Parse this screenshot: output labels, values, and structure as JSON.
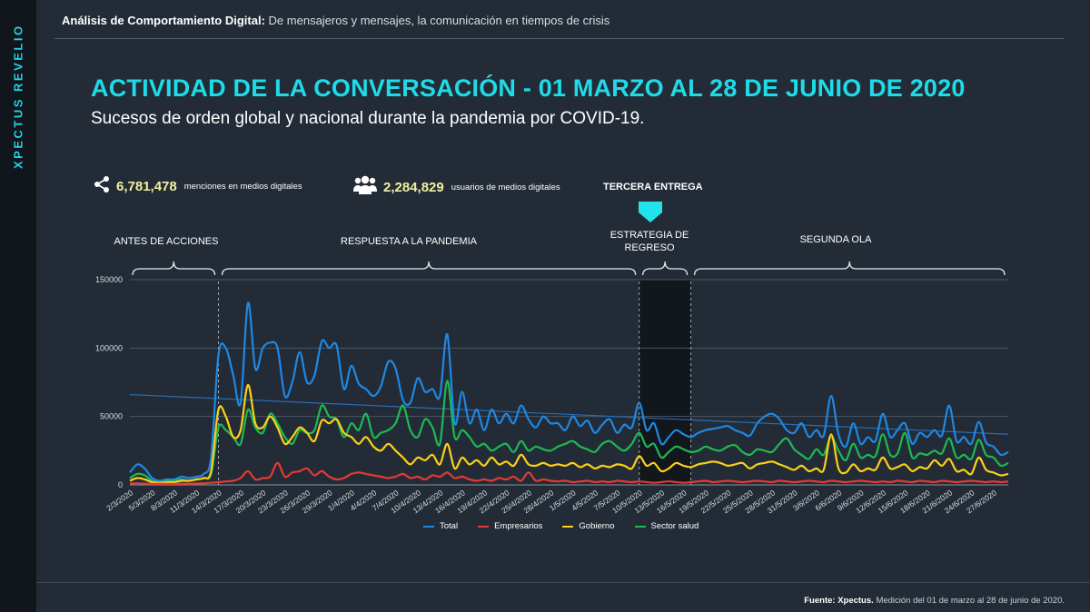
{
  "sidebar": {
    "brand": "XPECTUS REVELIO"
  },
  "header": {
    "bold": "Análisis de Comportamiento Digital:",
    "text": "De mensajeros y mensajes, la comunicación en tiempos de crisis"
  },
  "title": "ACTIVIDAD DE LA CONVERSACIÓN - 01 MARZO AL 28 DE JUNIO DE 2020",
  "subtitle": "Sucesos de orden global y nacional durante la pandemia por COVID-19.",
  "kpis": [
    {
      "icon": "share-icon",
      "value": "6,781,478",
      "label": "menciones en medios digitales"
    },
    {
      "icon": "users-icon",
      "value": "2,284,829",
      "label": "usuarios de medios digitales"
    }
  ],
  "callout": "TERCERA  ENTREGA",
  "periods": [
    {
      "label": "ANTES DE ACCIONES"
    },
    {
      "label": "RESPUESTA A LA PANDEMIA"
    },
    {
      "label": "ESTRATEGIA DE REGRESO"
    },
    {
      "label": "SEGUNDA OLA"
    }
  ],
  "footer": {
    "bold": "Fuente: Xpectus.",
    "text": "Medición del 01 de marzo al 28 de junio de 2020."
  },
  "colors": {
    "accent": "#1fdbe8",
    "total": "#1e88e5",
    "empresarios": "#e53935",
    "gobierno": "#fdd017",
    "salud": "#1db954",
    "highlight": "#12171c"
  },
  "chart_data": {
    "type": "line",
    "ylim": [
      0,
      150000
    ],
    "yticks": [
      0,
      50000,
      100000,
      150000
    ],
    "ytick_labels": [
      "0",
      "50000",
      "100000",
      "150000"
    ],
    "x_tick_labels": [
      "2/3/2020",
      "5/3/2020",
      "8/3/2020",
      "11/3/2020",
      "14/3/2020",
      "17/3/2020",
      "20/3/2020",
      "23/3/2020",
      "26/3/2020",
      "29/3/2020",
      "1/4/2020",
      "4/4/2020",
      "7/4/2020",
      "10/4/2020",
      "13/4/2020",
      "16/4/2020",
      "19/4/2020",
      "22/4/2020",
      "25/4/2020",
      "28/4/2020",
      "1/5/2020",
      "4/5/2020",
      "7/5/2020",
      "10/5/2020",
      "13/5/2020",
      "16/5/2020",
      "19/5/2020",
      "22/5/2020",
      "25/5/2020",
      "28/5/2020",
      "31/5/2020",
      "3/6/2020",
      "6/6/2020",
      "9/6/2020",
      "12/6/2020",
      "15/6/2020",
      "18/6/2020",
      "21/6/2020",
      "24/6/2020",
      "27/6/2020"
    ],
    "days": 120,
    "period_boundaries_day": [
      12,
      69,
      76
    ],
    "highlight_range_day": [
      69,
      76
    ],
    "trend_total": [
      66000,
      37000
    ],
    "legend": [
      "Total",
      "Empresarios",
      "Gobierno",
      "Sector salud"
    ],
    "series": [
      {
        "name": "Total",
        "values": [
          9000,
          15000,
          12000,
          5000,
          3000,
          4000,
          4000,
          6000,
          5000,
          6000,
          8000,
          20000,
          95000,
          100000,
          80000,
          60000,
          133000,
          85000,
          100000,
          104000,
          100000,
          65000,
          75000,
          97000,
          75000,
          80000,
          105000,
          100000,
          102000,
          70000,
          87000,
          74000,
          70000,
          65000,
          72000,
          90000,
          85000,
          62000,
          60000,
          78000,
          68000,
          70000,
          65000,
          110000,
          45000,
          68000,
          45000,
          55000,
          40000,
          55000,
          45000,
          52000,
          45000,
          58000,
          48000,
          42000,
          50000,
          45000,
          45000,
          40000,
          50000,
          43000,
          47000,
          38000,
          44000,
          48000,
          38000,
          44000,
          42000,
          60000,
          40000,
          45000,
          30000,
          35000,
          40000,
          37000,
          35000,
          38000,
          40000,
          41000,
          42000,
          43000,
          40000,
          38000,
          36000,
          45000,
          50000,
          52000,
          48000,
          40000,
          38000,
          45000,
          35000,
          40000,
          36000,
          65000,
          37000,
          28000,
          45000,
          30000,
          35000,
          32000,
          52000,
          35000,
          40000,
          45000,
          30000,
          38000,
          35000,
          40000,
          36000,
          58000,
          32000,
          35000,
          30000,
          46000,
          31000,
          28000,
          22000,
          24000
        ]
      },
      {
        "name": "Empresarios",
        "values": [
          1000,
          1200,
          900,
          800,
          700,
          800,
          700,
          800,
          900,
          1000,
          1200,
          1500,
          2000,
          2500,
          3000,
          5000,
          10000,
          4000,
          5000,
          6000,
          16000,
          6000,
          9000,
          10000,
          12000,
          7000,
          10000,
          6000,
          4000,
          5000,
          8000,
          9000,
          8000,
          7000,
          6000,
          5000,
          6000,
          8000,
          5000,
          6000,
          4000,
          7000,
          6000,
          9000,
          5000,
          6000,
          4000,
          3000,
          4000,
          3000,
          5000,
          4000,
          6000,
          3000,
          9000,
          3000,
          4000,
          3000,
          2500,
          3000,
          2000,
          2500,
          3000,
          2000,
          2500,
          2000,
          3000,
          2500,
          2000,
          2500,
          2000,
          1500,
          2000,
          2500,
          2000,
          1500,
          2000,
          2500,
          3000,
          2000,
          2500,
          3000,
          2500,
          2000,
          2500,
          3000,
          2500,
          2000,
          3000,
          2500,
          2000,
          2500,
          3000,
          2500,
          2000,
          3000,
          2500,
          2000,
          2500,
          3000,
          2500,
          2000,
          2500,
          2000,
          3000,
          2500,
          2000,
          3000,
          2500,
          2000,
          3000,
          2500,
          2000,
          2500,
          3000,
          2500,
          2000,
          2500,
          2000,
          2500
        ]
      },
      {
        "name": "Gobierno",
        "values": [
          3000,
          5000,
          4000,
          2000,
          1500,
          2000,
          2000,
          3000,
          3000,
          4000,
          5000,
          10000,
          55000,
          50000,
          35000,
          40000,
          73000,
          45000,
          42000,
          50000,
          42000,
          30000,
          35000,
          42000,
          38000,
          32000,
          47000,
          45000,
          48000,
          38000,
          35000,
          30000,
          35000,
          28000,
          25000,
          30000,
          25000,
          20000,
          15000,
          20000,
          18000,
          22000,
          15000,
          30000,
          12000,
          20000,
          15000,
          18000,
          14000,
          20000,
          15000,
          17000,
          14000,
          22000,
          15000,
          14000,
          16000,
          14000,
          15000,
          14000,
          16000,
          13000,
          15000,
          12000,
          14000,
          13000,
          15000,
          14000,
          12000,
          21000,
          14000,
          16000,
          10000,
          12000,
          16000,
          14000,
          13000,
          15000,
          16000,
          17000,
          16000,
          14000,
          15000,
          16000,
          12000,
          15000,
          16000,
          17000,
          15000,
          13000,
          11000,
          14000,
          10000,
          12000,
          11000,
          37000,
          12000,
          9000,
          15000,
          10000,
          12000,
          11000,
          20000,
          12000,
          13000,
          15000,
          10000,
          13000,
          12000,
          18000,
          14000,
          19000,
          10000,
          11000,
          8000,
          20000,
          11000,
          9000,
          7000,
          8000
        ]
      },
      {
        "name": "Sector salud",
        "values": [
          5000,
          8000,
          7000,
          3000,
          2000,
          2500,
          3000,
          4000,
          3000,
          4000,
          5000,
          8000,
          42000,
          40000,
          35000,
          30000,
          55000,
          42000,
          38000,
          52000,
          45000,
          35000,
          30000,
          40000,
          38000,
          40000,
          58000,
          50000,
          48000,
          35000,
          45000,
          40000,
          52000,
          35000,
          38000,
          40000,
          45000,
          58000,
          40000,
          35000,
          48000,
          42000,
          30000,
          76000,
          35000,
          40000,
          35000,
          28000,
          30000,
          25000,
          28000,
          30000,
          24000,
          32000,
          25000,
          28000,
          26000,
          25000,
          28000,
          30000,
          32000,
          28000,
          26000,
          24000,
          30000,
          32000,
          28000,
          25000,
          30000,
          38000,
          28000,
          30000,
          20000,
          24000,
          28000,
          26000,
          24000,
          25000,
          28000,
          26000,
          25000,
          28000,
          29000,
          24000,
          22000,
          26000,
          25000,
          24000,
          30000,
          34000,
          26000,
          22000,
          19000,
          26000,
          22000,
          35000,
          25000,
          18000,
          30000,
          20000,
          22000,
          21000,
          37000,
          22000,
          23000,
          38000,
          20000,
          23000,
          22000,
          25000,
          23000,
          34000,
          20000,
          22000,
          19000,
          33000,
          22000,
          20000,
          14000,
          16000
        ]
      }
    ]
  }
}
